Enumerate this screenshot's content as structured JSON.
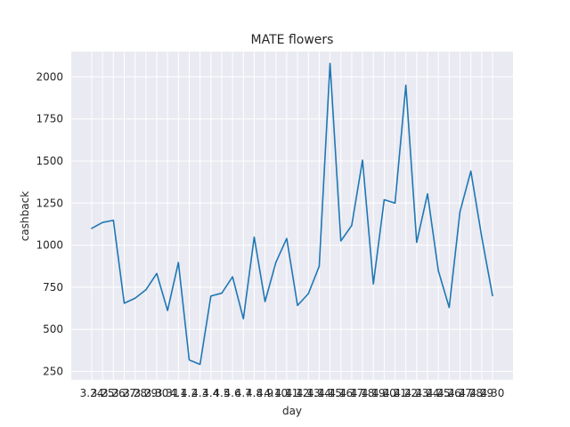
{
  "chart_data": {
    "type": "line",
    "title": "MATE flowers",
    "xlabel": "day",
    "ylabel": "cashback",
    "categories": [
      "3.24",
      "3.25",
      "3.26",
      "3.27",
      "3.28",
      "3.29",
      "3.30",
      "3.31",
      "4.1",
      "4.2",
      "4.3",
      "4.4",
      "4.5",
      "4.6",
      "4.7",
      "4.8",
      "4.9",
      "4.10",
      "4.11",
      "4.12",
      "4.13",
      "4.14",
      "4.15",
      "4.16",
      "4.17",
      "4.18",
      "4.19",
      "4.20",
      "4.21",
      "4.22",
      "4.23",
      "4.24",
      "4.25",
      "4.26",
      "4.27",
      "4.28",
      "4.29",
      "4.30"
    ],
    "series": [
      {
        "values": [
          1100,
          1135,
          1148,
          655,
          685,
          735,
          832,
          612,
          897,
          318,
          292,
          698,
          715,
          812,
          563,
          1048,
          665,
          898,
          1040,
          642,
          712,
          875,
          2080,
          1025,
          1117,
          1505,
          770,
          1270,
          1250,
          1950,
          1017,
          1305,
          848,
          630,
          1200,
          1440,
          1050,
          700
        ],
        "color": "#1f77b4"
      }
    ],
    "ylim": [
      200,
      2150
    ],
    "yticks": [
      250,
      500,
      750,
      1000,
      1250,
      1500,
      1750,
      2000
    ],
    "grid": true,
    "legend": "none",
    "background": "#eaeaf2",
    "gridColor": "#ffffff"
  }
}
